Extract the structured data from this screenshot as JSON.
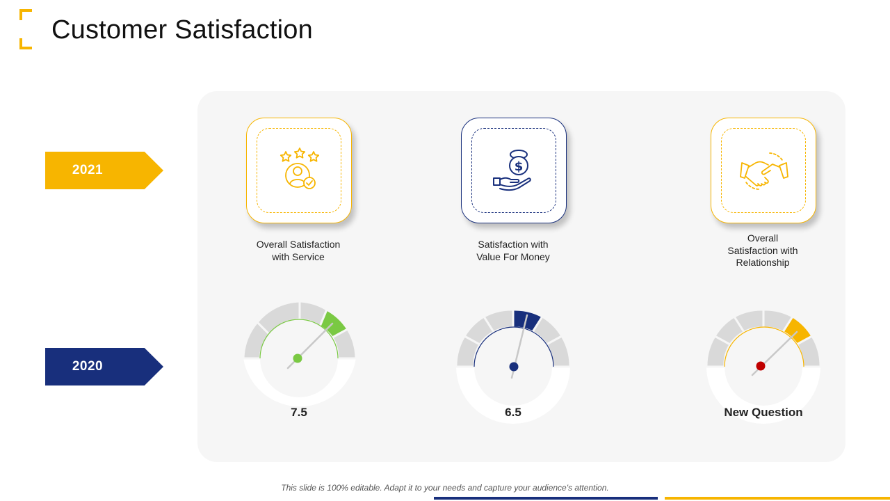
{
  "title": "Customer Satisfaction",
  "years": [
    "2021",
    "2020"
  ],
  "colors": {
    "yellow": "#f7b500",
    "navy": "#182f7c",
    "green": "#7ac943",
    "red": "#c00000",
    "gray": "#d9d9d9"
  },
  "metrics": [
    {
      "label_line1": "Overall Satisfaction",
      "label_line2": "with Service",
      "label_line3": "",
      "icon": "customer-rating-icon",
      "value": "7.5"
    },
    {
      "label_line1": "Satisfaction with",
      "label_line2": "Value For Money",
      "label_line3": "",
      "icon": "money-in-hand-icon",
      "value": "6.5"
    },
    {
      "label_line1": "Overall",
      "label_line2": "Satisfaction with",
      "label_line3": "Relationship",
      "icon": "handshake-icon",
      "value": "New Question"
    }
  ],
  "footer": "This slide is 100% editable. Adapt it to your needs and capture your audience's attention."
}
